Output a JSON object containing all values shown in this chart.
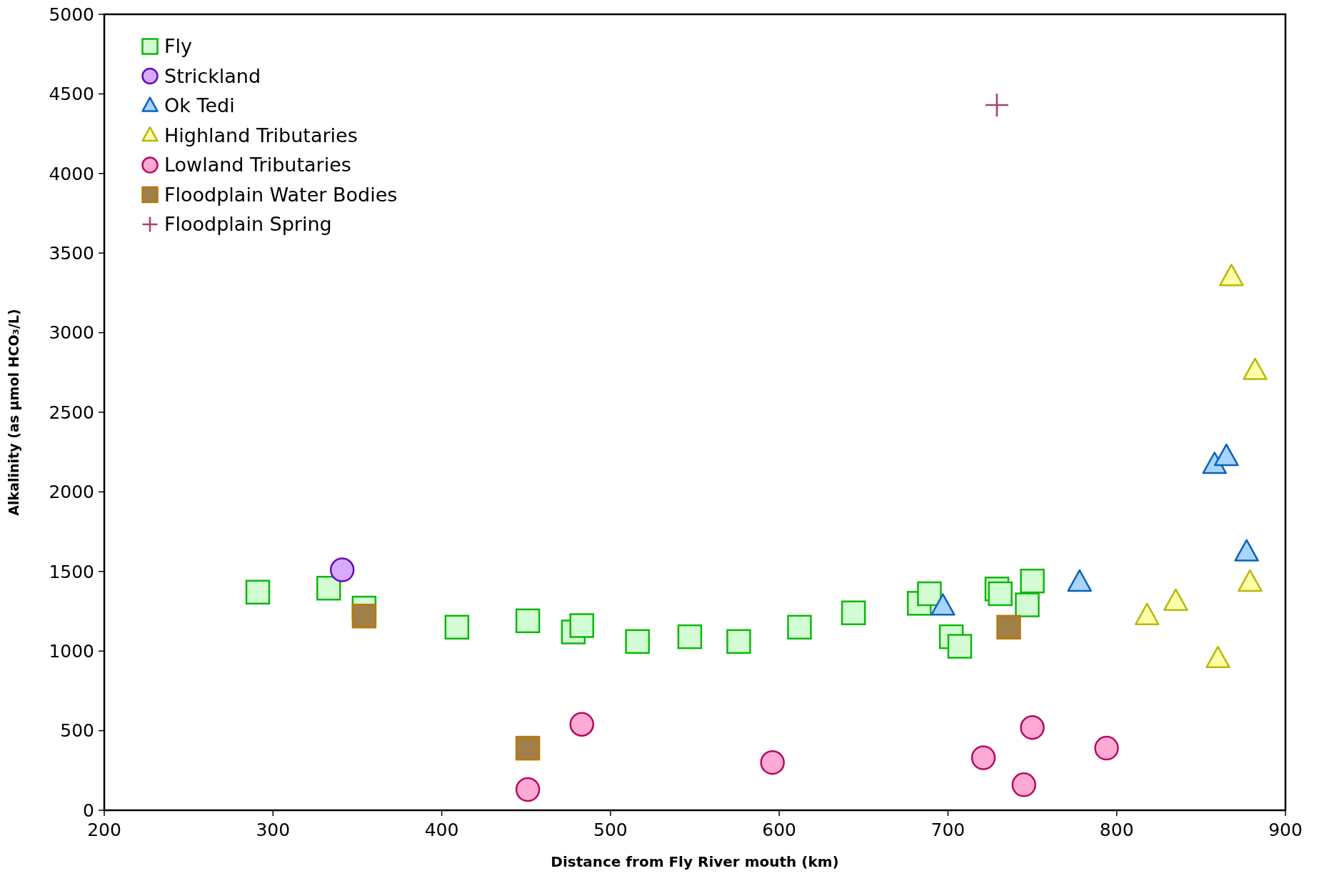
{
  "chart_data": {
    "type": "scatter",
    "xlabel": "Distance from Fly River mouth (km)",
    "ylabel": "Alkalinity (as µmol HCO₃/L)",
    "xlim": [
      200,
      900
    ],
    "xticks": [
      200,
      300,
      400,
      500,
      600,
      700,
      800,
      900
    ],
    "ylim": [
      0,
      5000
    ],
    "yticks": [
      0,
      500,
      1000,
      1500,
      2000,
      2500,
      3000,
      3500,
      4000,
      4500,
      5000
    ],
    "grid": false,
    "legend": "top left",
    "series": [
      {
        "name": "Fly",
        "marker": "square",
        "color": "#d4fcd4",
        "x": [
          291,
          333,
          354,
          409,
          451,
          478,
          483,
          516,
          547,
          576,
          612,
          644,
          683,
          689,
          702,
          707,
          729,
          731,
          747,
          750
        ],
        "values": [
          1370,
          1395,
          1270,
          1150,
          1190,
          1120,
          1160,
          1060,
          1090,
          1060,
          1150,
          1240,
          1300,
          1360,
          1090,
          1030,
          1390,
          1360,
          1290,
          1440
        ]
      },
      {
        "name": "Strickland",
        "marker": "circle",
        "color": "#d8aaff",
        "x": [
          341
        ],
        "values": [
          1510
        ]
      },
      {
        "name": "Ok Tedi",
        "marker": "triangle",
        "color": "#a8d4ff",
        "x": [
          697,
          778,
          858,
          865,
          877
        ],
        "values": [
          1280,
          1430,
          2170,
          2220,
          1620
        ]
      },
      {
        "name": "Highland Tributaries",
        "marker": "triangle",
        "color": "#ffffa8",
        "x": [
          818,
          835,
          860,
          868,
          879,
          882
        ],
        "values": [
          1220,
          1310,
          950,
          3350,
          1430,
          2760
        ]
      },
      {
        "name": "Lowland Tributaries",
        "marker": "circle",
        "color": "#ffaad4",
        "x": [
          451,
          483,
          596,
          721,
          745,
          750,
          794
        ],
        "values": [
          130,
          540,
          300,
          330,
          160,
          520,
          390
        ]
      },
      {
        "name": "Floodplain Water Bodies",
        "marker": "square",
        "color": "#a08048",
        "x": [
          354,
          451,
          736
        ],
        "values": [
          1220,
          390,
          1150
        ]
      },
      {
        "name": "Floodplain Spring",
        "marker": "cross",
        "color": "#a84070",
        "x": [
          729
        ],
        "values": [
          4430
        ]
      }
    ]
  }
}
